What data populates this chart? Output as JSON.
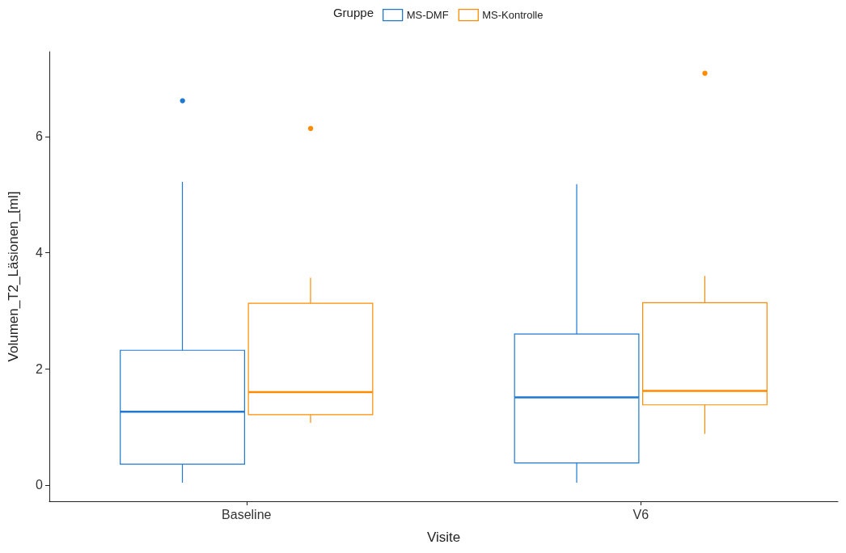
{
  "chart_data": {
    "type": "box",
    "xlabel": "Visite",
    "ylabel": "Volumen_T2_Läsionen_[ml]",
    "legend_title": "Gruppe",
    "legend": "top",
    "grid": false,
    "categories": [
      "Baseline",
      "V6"
    ],
    "ylim": [
      -0.28,
      7.46
    ],
    "yticks": [
      0,
      2,
      4,
      6
    ],
    "series": [
      {
        "name": "MS-DMF",
        "color": "#1f78d1",
        "boxes": [
          {
            "low": 0.04,
            "q1": 0.36,
            "median": 1.26,
            "q3": 2.32,
            "high": 5.22,
            "outliers": [
              6.63
            ]
          },
          {
            "low": 0.04,
            "q1": 0.38,
            "median": 1.51,
            "q3": 2.6,
            "high": 5.18
          }
        ]
      },
      {
        "name": "MS-Kontrolle",
        "color": "#ff8c00",
        "boxes": [
          {
            "low": 1.07,
            "q1": 1.21,
            "median": 1.6,
            "q3": 3.13,
            "high": 3.57,
            "outliers": [
              6.15
            ]
          },
          {
            "low": 0.88,
            "q1": 1.38,
            "median": 1.62,
            "q3": 3.14,
            "high": 3.6,
            "outliers": [
              7.1
            ]
          }
        ]
      }
    ]
  }
}
